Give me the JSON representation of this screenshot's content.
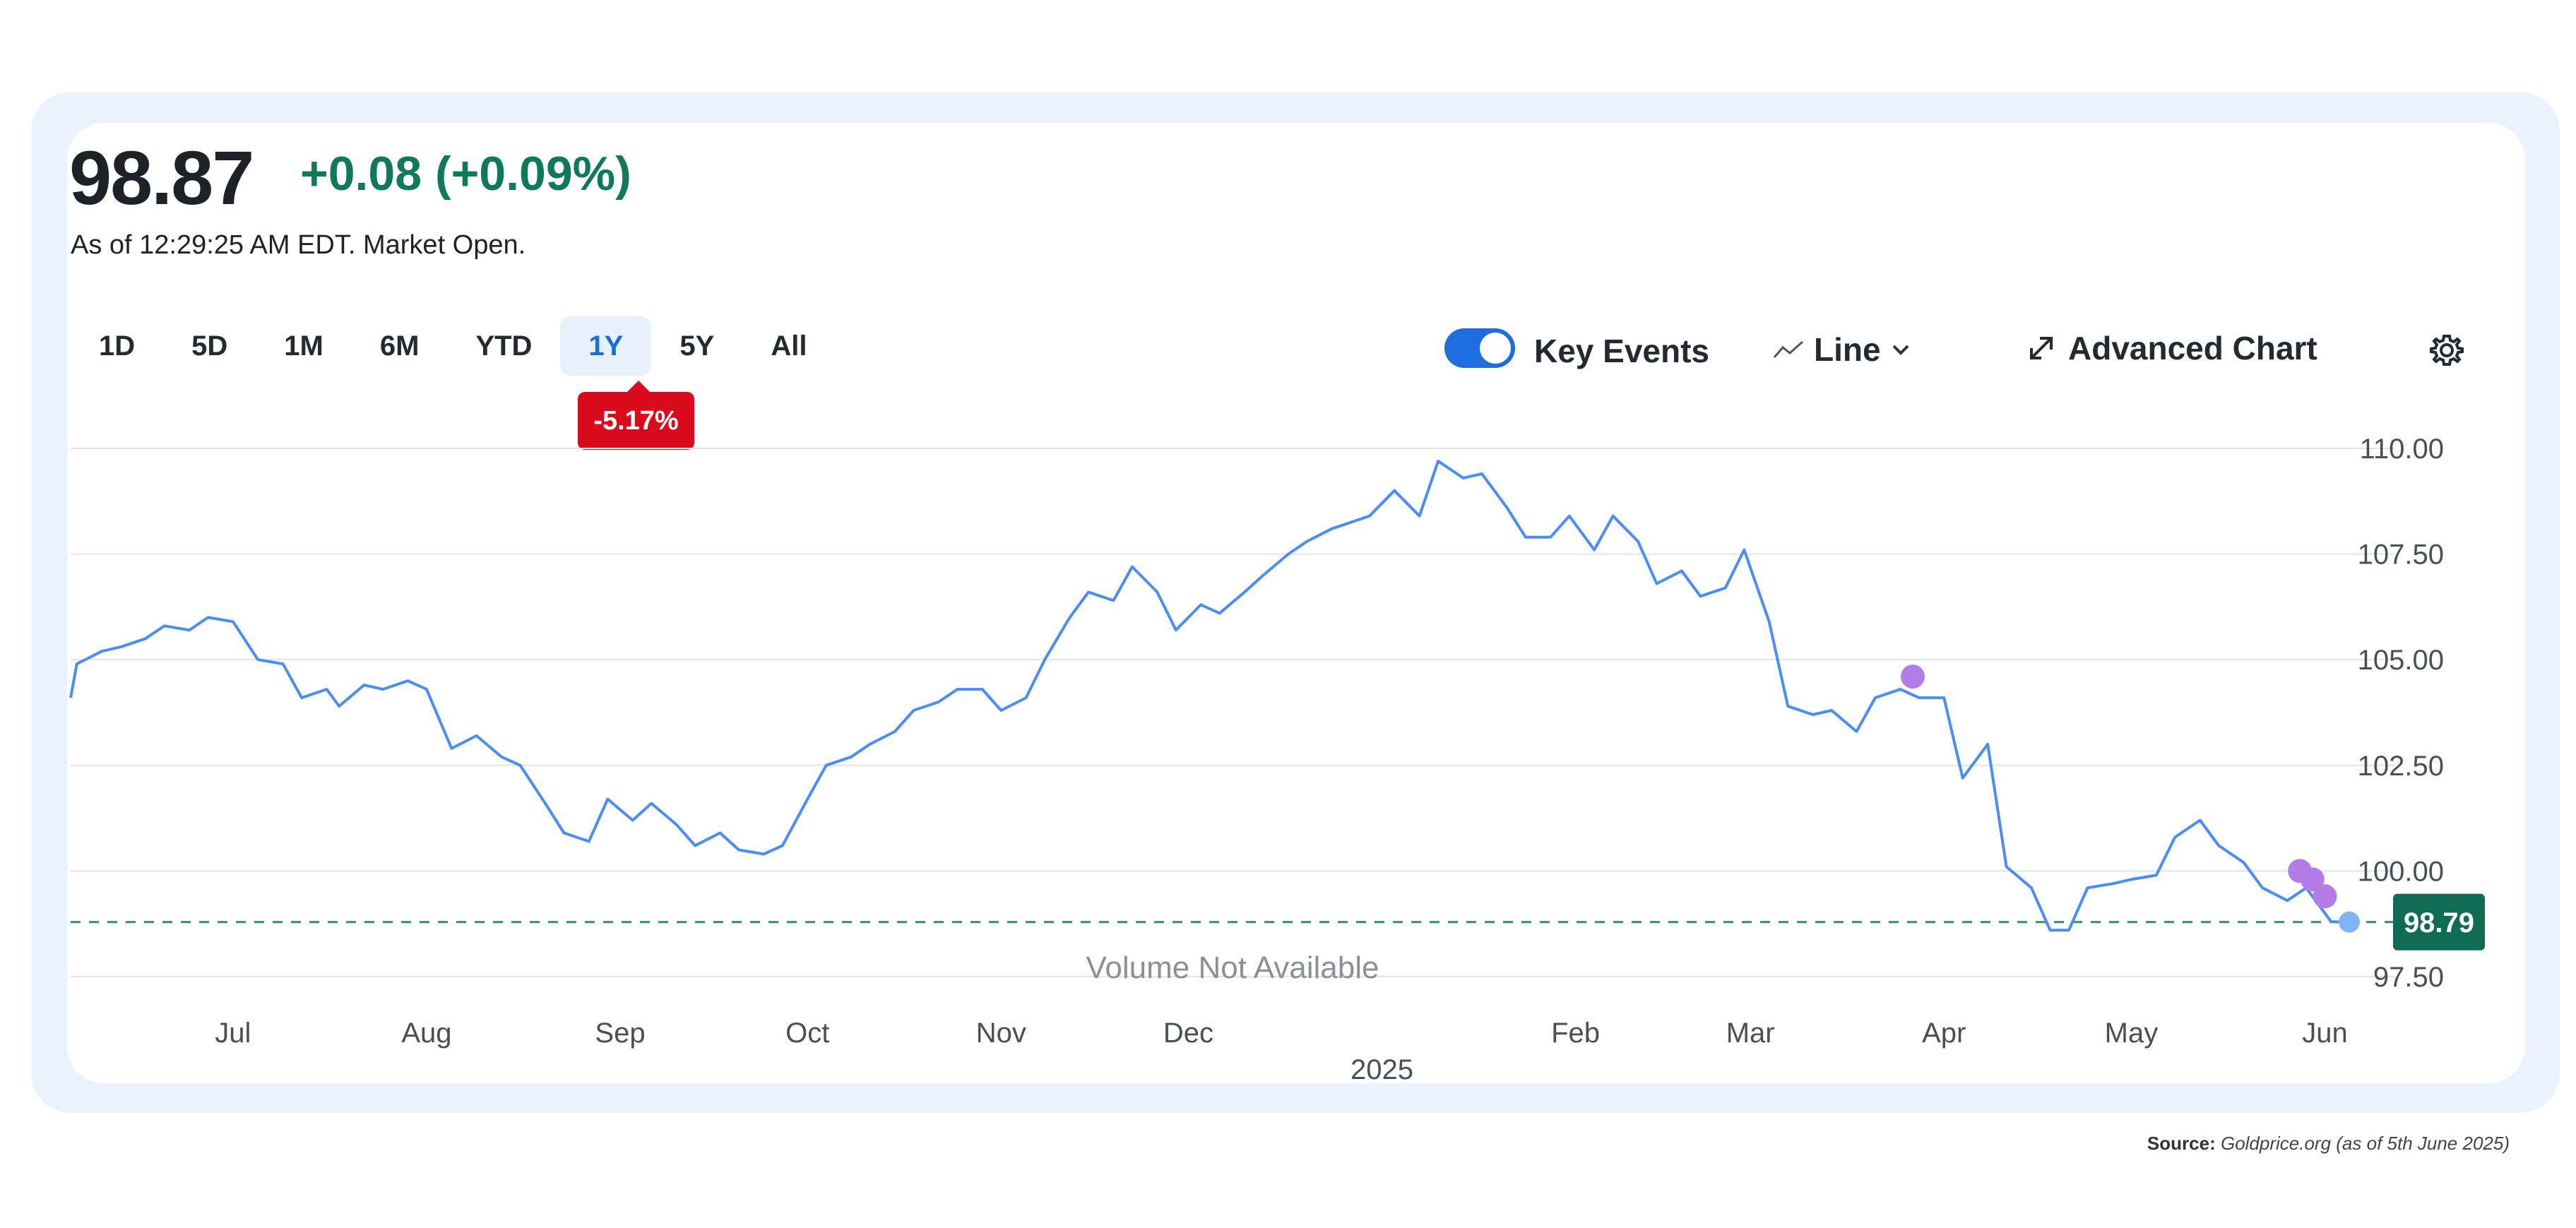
{
  "header": {
    "price": "98.87",
    "change": "+0.08 (+0.09%)",
    "as_of": "As of 12:29:25 AM EDT. Market Open."
  },
  "ranges": [
    "1D",
    "5D",
    "1M",
    "6M",
    "YTD",
    "1Y",
    "5Y",
    "All"
  ],
  "active_range": "1Y",
  "range_change_badge": "-5.17%",
  "controls": {
    "key_events_label": "Key Events",
    "line_label": "Line",
    "advanced_label": "Advanced Chart"
  },
  "colors": {
    "line": "#4a8df5",
    "event_dot": "#b57be6",
    "last_dot": "#80b4f5",
    "positive": "#0f7a5a",
    "negative": "#d90b1c",
    "active_range": "#1a6fd6"
  },
  "volume_note": "Volume Not Available",
  "source": {
    "label": "Source:",
    "text": "Goldprice.org (as of 5th June 2025)"
  },
  "chart_data": {
    "type": "line",
    "y_ticks": [
      "110.00",
      "107.50",
      "105.00",
      "102.50",
      "100.00",
      "97.50"
    ],
    "ylim": [
      97.5,
      110
    ],
    "x_labels": [
      "Jul",
      "Aug",
      "Sep",
      "Oct",
      "Nov",
      "Dec",
      "Feb",
      "Mar",
      "Apr",
      "May",
      "Jun"
    ],
    "year_label": "2025",
    "reference_line": 98.79,
    "reference_label": "98.79",
    "grid": true,
    "series": [
      {
        "x": [
          "2024-06-05",
          "2024-06-06",
          "2024-06-10",
          "2024-06-13",
          "2024-06-17",
          "2024-06-20",
          "2024-06-24",
          "2024-06-27",
          "2024-07-01",
          "2024-07-05",
          "2024-07-09",
          "2024-07-12",
          "2024-07-16",
          "2024-07-18",
          "2024-07-22",
          "2024-07-25",
          "2024-07-29",
          "2024-08-01",
          "2024-08-05",
          "2024-08-09",
          "2024-08-13",
          "2024-08-16",
          "2024-08-20",
          "2024-08-23",
          "2024-08-27",
          "2024-08-30",
          "2024-09-03",
          "2024-09-06",
          "2024-09-10",
          "2024-09-13",
          "2024-09-17",
          "2024-09-20",
          "2024-09-24",
          "2024-09-27",
          "2024-10-01",
          "2024-10-04",
          "2024-10-08",
          "2024-10-11",
          "2024-10-15",
          "2024-10-18",
          "2024-10-22",
          "2024-10-25",
          "2024-10-29",
          "2024-11-01",
          "2024-11-05",
          "2024-11-08",
          "2024-11-12",
          "2024-11-15",
          "2024-11-19",
          "2024-11-22",
          "2024-11-26",
          "2024-11-29",
          "2024-12-03",
          "2024-12-06",
          "2024-12-10",
          "2024-12-13",
          "2024-12-17",
          "2024-12-20",
          "2024-12-24",
          "2024-12-30",
          "2025-01-03",
          "2025-01-07",
          "2025-01-10",
          "2025-01-14",
          "2025-01-17",
          "2025-01-21",
          "2025-01-24",
          "2025-01-28",
          "2025-01-31",
          "2025-02-04",
          "2025-02-07",
          "2025-02-11",
          "2025-02-14",
          "2025-02-18",
          "2025-02-21",
          "2025-02-25",
          "2025-02-28",
          "2025-03-04",
          "2025-03-07",
          "2025-03-11",
          "2025-03-14",
          "2025-03-18",
          "2025-03-21",
          "2025-03-25",
          "2025-03-28",
          "2025-04-01",
          "2025-04-04",
          "2025-04-08",
          "2025-04-11",
          "2025-04-15",
          "2025-04-18",
          "2025-04-21",
          "2025-04-24",
          "2025-04-28",
          "2025-05-01",
          "2025-05-05",
          "2025-05-08",
          "2025-05-12",
          "2025-05-15",
          "2025-05-19",
          "2025-05-22",
          "2025-05-26",
          "2025-05-29",
          "2025-06-02",
          "2025-06-04"
        ],
        "y": [
          104.1,
          104.9,
          105.2,
          105.3,
          105.5,
          105.8,
          105.7,
          106.0,
          105.9,
          105.0,
          104.9,
          104.1,
          104.3,
          103.9,
          104.4,
          104.3,
          104.5,
          104.3,
          102.9,
          103.2,
          102.7,
          102.5,
          101.6,
          100.9,
          100.7,
          101.7,
          101.2,
          101.6,
          101.1,
          100.6,
          100.9,
          100.5,
          100.4,
          100.6,
          101.7,
          102.5,
          102.7,
          103.0,
          103.3,
          103.8,
          104.0,
          104.3,
          104.3,
          103.8,
          104.1,
          105.0,
          106.0,
          106.6,
          106.4,
          107.2,
          106.6,
          105.7,
          106.3,
          106.1,
          106.6,
          107.0,
          107.5,
          107.8,
          108.1,
          108.4,
          109.0,
          108.4,
          109.7,
          109.3,
          109.4,
          108.6,
          107.9,
          107.9,
          108.4,
          107.6,
          108.4,
          107.8,
          106.8,
          107.1,
          106.5,
          106.7,
          107.6,
          105.9,
          103.9,
          103.7,
          103.8,
          103.3,
          104.1,
          104.3,
          104.1,
          104.1,
          102.2,
          103.0,
          100.1,
          99.6,
          98.6,
          98.6,
          99.6,
          99.7,
          99.8,
          99.9,
          100.8,
          101.2,
          100.6,
          100.2,
          99.6,
          99.3,
          99.6,
          98.8,
          98.79
        ]
      }
    ],
    "events": [
      {
        "date": "2025-03-27",
        "value": 104.6
      },
      {
        "date": "2025-05-28",
        "value": 100.0
      },
      {
        "date": "2025-05-30",
        "value": 99.8
      },
      {
        "date": "2025-06-01",
        "value": 99.4
      }
    ]
  }
}
